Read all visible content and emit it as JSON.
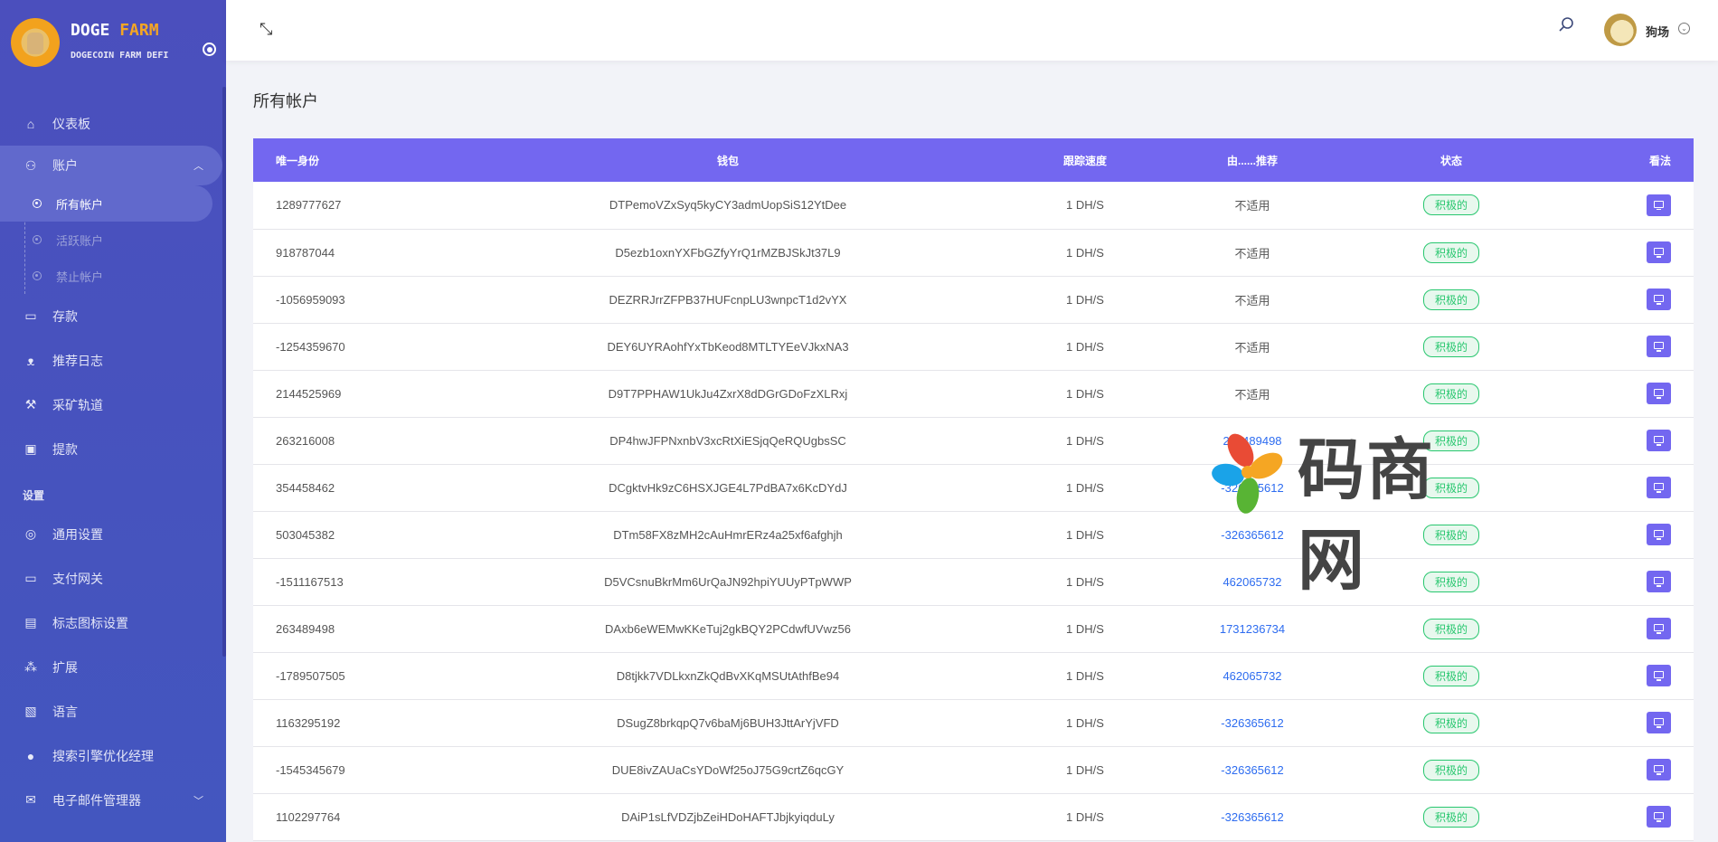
{
  "brand": {
    "title_a": "DOGE",
    "title_b": "FARM",
    "subtitle": "DOGECOIN FARM DEFI"
  },
  "sidebar": {
    "items": [
      {
        "label": "仪表板",
        "icon": "home-icon"
      },
      {
        "label": "账户",
        "icon": "users-icon",
        "expanded": true
      },
      {
        "label": "存款",
        "icon": "wallet-icon"
      },
      {
        "label": "推荐日志",
        "icon": "referral-icon"
      },
      {
        "label": "采矿轨道",
        "icon": "hammer-icon"
      },
      {
        "label": "提款",
        "icon": "money-icon"
      }
    ],
    "sub_items": [
      {
        "label": "所有帐户",
        "active": true
      },
      {
        "label": "活跃账户"
      },
      {
        "label": "禁止帐户"
      }
    ],
    "section": "设置",
    "settings": [
      {
        "label": "通用设置",
        "icon": "lifebuoy-icon"
      },
      {
        "label": "支付网关",
        "icon": "credit-card-icon"
      },
      {
        "label": "标志图标设置",
        "icon": "image-icon"
      },
      {
        "label": "扩展",
        "icon": "extensions-icon"
      },
      {
        "label": "语言",
        "icon": "language-icon"
      },
      {
        "label": "搜索引擎优化经理",
        "icon": "globe-icon"
      },
      {
        "label": "电子邮件管理器",
        "icon": "mail-icon"
      }
    ]
  },
  "header": {
    "user": "狗场"
  },
  "page": {
    "title": "所有帐户"
  },
  "table": {
    "columns": [
      "唯一身份",
      "钱包",
      "跟踪速度",
      "由......推荐",
      "状态",
      "看法"
    ],
    "rows": [
      [
        "1289777627",
        "DTPemoVZxSyq5kyCY3admUopSiS12YtDee",
        "1 DH/S",
        "不适用",
        "积极的"
      ],
      [
        "918787044",
        "D5ezb1oxnYXFbGZfyYrQ1rMZBJSkJt37L9",
        "1 DH/S",
        "不适用",
        "积极的"
      ],
      [
        "-1056959093",
        "DEZRRJrrZFPB37HUFcnpLU3wnpcT1d2vYX",
        "1 DH/S",
        "不适用",
        "积极的"
      ],
      [
        "-1254359670",
        "DEY6UYRAohfYxTbKeod8MTLTYEeVJkxNA3",
        "1 DH/S",
        "不适用",
        "积极的"
      ],
      [
        "2144525969",
        "D9T7PPHAW1UkJu4ZxrX8dDGrGDoFzXLRxj",
        "1 DH/S",
        "不适用",
        "积极的"
      ],
      [
        "263216008",
        "DP4hwJFPNxnbV3xcRtXiESjqQeRQUgbsSC",
        "1 DH/S",
        "263489498",
        "积极的"
      ],
      [
        "354458462",
        "DCgktvHk9zC6HSXJGE4L7PdBA7x6KcDYdJ",
        "1 DH/S",
        "-326365612",
        "积极的"
      ],
      [
        "503045382",
        "DTm58FX8zMH2cAuHmrERz4a25xf6afghjh",
        "1 DH/S",
        "-326365612",
        "积极的"
      ],
      [
        "-1511167513",
        "D5VCsnuBkrMm6UrQaJN92hpiYUUyPTpWWP",
        "1 DH/S",
        "462065732",
        "积极的"
      ],
      [
        "263489498",
        "DAxb6eWEMwKKeTuj2gkBQY2PCdwfUVwz56",
        "1 DH/S",
        "1731236734",
        "积极的"
      ],
      [
        "-1789507505",
        "D8tjkk7VDLkxnZkQdBvXKqMSUtAthfBe94",
        "1 DH/S",
        "462065732",
        "积极的"
      ],
      [
        "1163295192",
        "DSugZ8brkqpQ7v6baMj6BUH3JttArYjVFD",
        "1 DH/S",
        "-326365612",
        "积极的"
      ],
      [
        "-1545345679",
        "DUE8ivZAUaCsYDoWf25oJ75G9crtZ6qcGY",
        "1 DH/S",
        "-326365612",
        "积极的"
      ],
      [
        "1102297764",
        "DAiP1sLfVDZjbZeiHDoHAFTJbjkyiqduLy",
        "1 DH/S",
        "-326365612",
        "积极的"
      ]
    ]
  },
  "watermark": {
    "text": "码商网"
  },
  "colors": {
    "sidebar": "#4b4fbd",
    "accent": "#7367f0",
    "success": "#28c76f",
    "link": "#2d6cf0",
    "brand_orange": "#f5a623"
  }
}
